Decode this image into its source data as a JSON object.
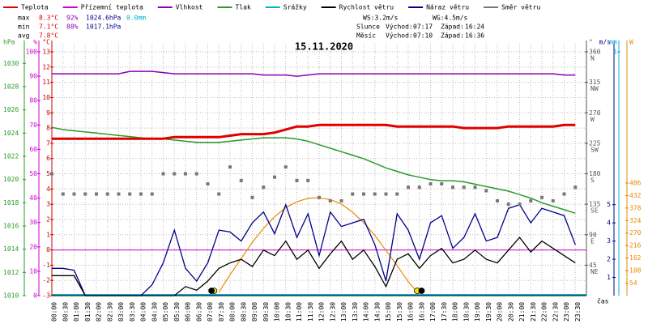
{
  "chart_data": {
    "type": "line",
    "title": "15.11.2020",
    "legend": [
      {
        "name": "Teplota",
        "color": "#e00000"
      },
      {
        "name": "Přízemní teplota",
        "color": "#d000d0"
      },
      {
        "name": "Vlhkost",
        "color": "#8a00b8"
      },
      {
        "name": "Tlak",
        "color": "#2a9a2a"
      },
      {
        "name": "Srážky",
        "color": "#00b0d0"
      },
      {
        "name": "Rychlost větru",
        "color": "#000000"
      },
      {
        "name": "Náraz větru",
        "color": "#00008b"
      },
      {
        "name": "Směr větru",
        "color": "#777777"
      }
    ],
    "stats": [
      {
        "label": "max",
        "temp": "8.3°C",
        "humidity": "92%",
        "pressure": "1024.6hPa",
        "rain": "0.0mm"
      },
      {
        "label": "min",
        "temp": "7.1°C",
        "humidity": "88%",
        "pressure": "1017.1hPa"
      },
      {
        "label": "avg",
        "temp": "7.8°C"
      }
    ],
    "wind_summary": {
      "speed": "WS:3.2m/s",
      "gust": "WG:4.5m/s"
    },
    "sun": {
      "label": "Slunce",
      "rise_label": "Východ:",
      "rise": "07:17",
      "set_label": "Západ:",
      "set": "16:24"
    },
    "moon": {
      "label": "Měsíc",
      "rise_label": "Východ:",
      "rise": "07:10",
      "set_label": "Západ:",
      "set": "16:36"
    },
    "x_label": "čas",
    "categories": [
      "00:00",
      "00:30",
      "01:00",
      "01:30",
      "02:00",
      "02:30",
      "03:00",
      "03:30",
      "04:00",
      "04:30",
      "05:00",
      "05:30",
      "06:00",
      "06:30",
      "07:00",
      "07:30",
      "08:00",
      "08:30",
      "09:00",
      "09:30",
      "10:00",
      "10:30",
      "11:00",
      "11:30",
      "12:00",
      "12:30",
      "13:00",
      "13:30",
      "14:00",
      "14:30",
      "15:00",
      "15:30",
      "16:00",
      "16:30",
      "17:00",
      "17:30",
      "18:00",
      "18:30",
      "19:00",
      "19:30",
      "20:00",
      "20:30",
      "21:00",
      "21:30",
      "22:00",
      "22:30",
      "23:00",
      "23:30"
    ],
    "axes": {
      "pressure": {
        "label": "hPa",
        "lim": [
          1010,
          1031
        ],
        "ticks": [
          1010,
          1012,
          1014,
          1016,
          1018,
          1020,
          1022,
          1024,
          1026,
          1028,
          1030
        ],
        "color": "#2a9a2a"
      },
      "humidity": {
        "label": "%",
        "lim": [
          0,
          100
        ],
        "ticks": [
          0,
          10,
          20,
          30,
          40,
          50,
          60,
          70,
          80,
          90,
          100
        ],
        "color": "#d000d0"
      },
      "temp": {
        "label": "°C",
        "lim": [
          -3,
          13
        ],
        "ticks": [
          -3,
          -2,
          -1,
          0,
          1,
          2,
          3,
          4,
          5,
          6,
          7,
          8,
          9,
          10,
          11,
          12,
          13
        ],
        "color": "#c00000"
      },
      "direction": {
        "label": "°",
        "lim": [
          0,
          360
        ],
        "ticks": [
          45,
          90,
          135,
          180,
          225,
          270,
          315,
          360
        ],
        "names": [
          "NE",
          "E",
          "SE",
          "S",
          "SW",
          "W",
          "NW",
          "N"
        ],
        "color": "#555555"
      },
      "wind": {
        "label": "m/s",
        "lim": [
          0,
          13.4
        ],
        "ticks": [
          1,
          2,
          3,
          4,
          5
        ],
        "color": "#00008b"
      },
      "rain": {
        "label": "mm",
        "lim": [
          0,
          1
        ],
        "ticks": [
          1
        ],
        "color": "#00b0d0"
      },
      "radiation": {
        "label": "W",
        "lim": [
          0,
          1052
        ],
        "ticks": [
          54,
          108,
          162,
          216,
          270,
          324,
          378,
          432,
          486
        ],
        "color": "#e88a00"
      }
    },
    "series": [
      {
        "legend": 3,
        "axis": "pressure",
        "values": [
          1024.5,
          1024.3,
          1024.2,
          1024.1,
          1024.0,
          1023.9,
          1023.8,
          1023.7,
          1023.6,
          1023.5,
          1023.5,
          1023.4,
          1023.3,
          1023.2,
          1023.2,
          1023.2,
          1023.3,
          1023.4,
          1023.5,
          1023.6,
          1023.6,
          1023.6,
          1023.5,
          1023.3,
          1023.0,
          1022.7,
          1022.4,
          1022.1,
          1021.8,
          1021.4,
          1021.0,
          1020.7,
          1020.4,
          1020.2,
          1020.0,
          1019.9,
          1019.9,
          1019.8,
          1019.6,
          1019.4,
          1019.2,
          1019.0,
          1018.7,
          1018.4,
          1018.0,
          1017.7,
          1017.4,
          1017.1
        ]
      },
      {
        "legend": 2,
        "axis": "humidity",
        "values": [
          91,
          91,
          91,
          91,
          91,
          91,
          91,
          92,
          92,
          92,
          91.5,
          91,
          91,
          91,
          91,
          91,
          91,
          91,
          91,
          90.5,
          90.5,
          90.5,
          90,
          90.5,
          91,
          91,
          91,
          91,
          91,
          91,
          91,
          91,
          91,
          91,
          91,
          91,
          91,
          91,
          91,
          91,
          91,
          91,
          91,
          91,
          91,
          91,
          90.5,
          90.5
        ]
      },
      {
        "legend": 0,
        "axis": "temp",
        "values": [
          7.3,
          7.3,
          7.3,
          7.3,
          7.3,
          7.3,
          7.3,
          7.3,
          7.3,
          7.3,
          7.3,
          7.4,
          7.4,
          7.4,
          7.4,
          7.4,
          7.5,
          7.6,
          7.6,
          7.6,
          7.7,
          7.9,
          8.1,
          8.1,
          8.2,
          8.2,
          8.2,
          8.2,
          8.2,
          8.2,
          8.2,
          8.1,
          8.1,
          8.1,
          8.1,
          8.1,
          8.1,
          8.0,
          8.0,
          8.0,
          8.0,
          8.1,
          8.1,
          8.1,
          8.1,
          8.1,
          8.2,
          8.2
        ]
      },
      {
        "legend": 6,
        "axis": "wind",
        "values": [
          1.5,
          1.5,
          1.4,
          0,
          0,
          0,
          0,
          0,
          0,
          0.6,
          1.8,
          3.6,
          1.5,
          0.8,
          1.8,
          3.6,
          3.5,
          3.0,
          4.0,
          4.6,
          3.4,
          5.0,
          3.2,
          4.5,
          2.2,
          4.6,
          3.8,
          4.0,
          4.2,
          2.8,
          0.8,
          4.5,
          3.6,
          2.0,
          4.0,
          4.4,
          2.6,
          3.2,
          4.5,
          3.0,
          3.2,
          4.8,
          5.0,
          4.0,
          4.8,
          4.6,
          4.4,
          2.8
        ]
      },
      {
        "legend": 5,
        "axis": "wind",
        "values": [
          1.1,
          1.1,
          1.1,
          0,
          0,
          0,
          0,
          0,
          0,
          0,
          0,
          0,
          0.5,
          0.3,
          0.8,
          1.5,
          1.8,
          2.0,
          1.6,
          2.5,
          2.2,
          3.0,
          2.0,
          2.5,
          1.5,
          2.3,
          3.0,
          2.0,
          2.5,
          1.6,
          0.5,
          2.0,
          2.3,
          1.5,
          2.2,
          2.6,
          1.8,
          2.0,
          2.5,
          2.0,
          1.8,
          2.5,
          3.2,
          2.4,
          3.0,
          2.6,
          2.2,
          1.8
        ]
      },
      {
        "legend": 7,
        "axis": "direction",
        "marker": "square",
        "values": [
          180,
          150,
          150,
          150,
          150,
          150,
          150,
          150,
          150,
          150,
          180,
          180,
          180,
          180,
          165,
          150,
          190,
          170,
          145,
          160,
          175,
          190,
          170,
          170,
          145,
          140,
          140,
          150,
          150,
          150,
          150,
          150,
          160,
          160,
          165,
          165,
          160,
          160,
          160,
          155,
          140,
          135,
          135,
          140,
          145,
          140,
          150,
          160
        ]
      }
    ],
    "radiation": {
      "axis": "radiation",
      "color": "#e88a00",
      "values": [
        null,
        null,
        null,
        null,
        null,
        null,
        null,
        null,
        null,
        null,
        null,
        null,
        null,
        null,
        null,
        15,
        90,
        160,
        230,
        290,
        340,
        380,
        405,
        420,
        422,
        415,
        395,
        360,
        315,
        260,
        195,
        130,
        60,
        5,
        null,
        null,
        null,
        null,
        null,
        null,
        null,
        null,
        null,
        null,
        null,
        null,
        null,
        null
      ]
    },
    "grid": true
  }
}
